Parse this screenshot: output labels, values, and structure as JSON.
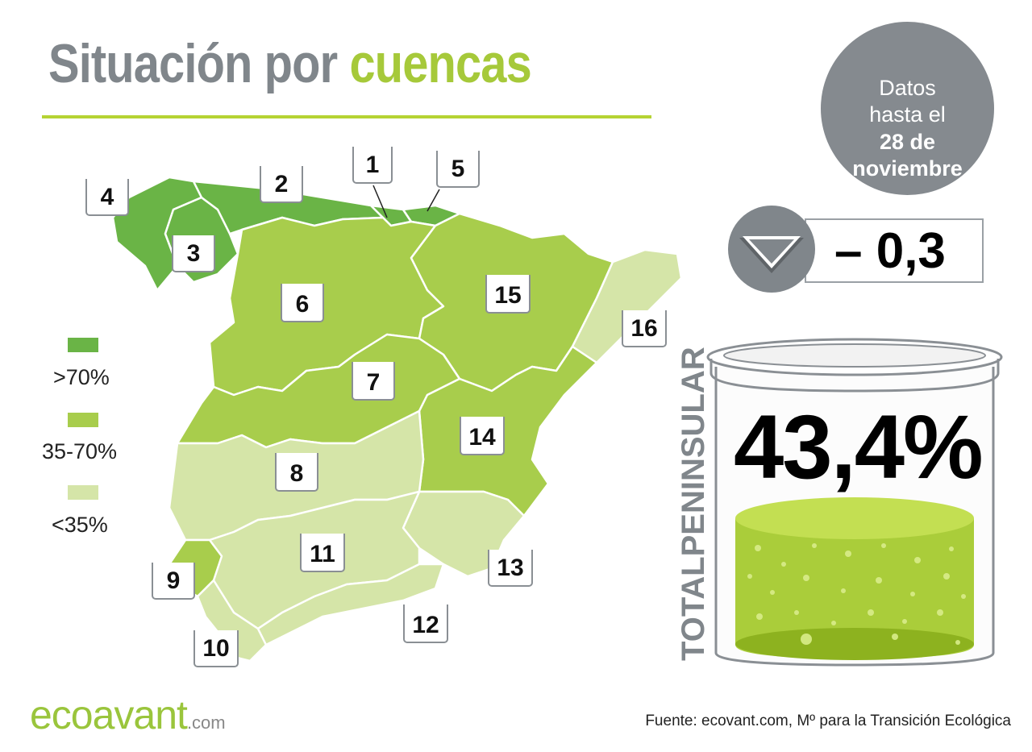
{
  "title": {
    "part1": "Situación por",
    "part2": "cuencas"
  },
  "date": {
    "line1": "Datos",
    "line2": "hasta el",
    "line3": "28 de",
    "line4": "noviembre"
  },
  "change": {
    "value": "– 0,3",
    "direction": "down"
  },
  "total": {
    "label": "TOTALPENINSULAR",
    "value": "43,4%",
    "fill_level": 0.434
  },
  "legend": [
    {
      "label": ">70%",
      "color": "#6ab446"
    },
    {
      "label": "35-70%",
      "color": "#a8cd4c"
    },
    {
      "label": "<35%",
      "color": "#d5e5a8"
    }
  ],
  "basins": [
    {
      "number": "1",
      "category": ">70%"
    },
    {
      "number": "2",
      "category": ">70%"
    },
    {
      "number": "3",
      "category": ">70%"
    },
    {
      "number": "4",
      "category": ">70%"
    },
    {
      "number": "5",
      "category": ">70%"
    },
    {
      "number": "6",
      "category": "35-70%"
    },
    {
      "number": "7",
      "category": "35-70%"
    },
    {
      "number": "8",
      "category": "<35%"
    },
    {
      "number": "9",
      "category": "35-70%"
    },
    {
      "number": "10",
      "category": "<35%"
    },
    {
      "number": "11",
      "category": "<35%"
    },
    {
      "number": "12",
      "category": "<35%"
    },
    {
      "number": "13",
      "category": "<35%"
    },
    {
      "number": "14",
      "category": "35-70%"
    },
    {
      "number": "15",
      "category": "35-70%"
    },
    {
      "number": "16",
      "category": "<35%"
    }
  ],
  "colors": {
    "high": "#6ab446",
    "mid": "#a8cd4c",
    "low": "#d5e5a8",
    "grey": "#80868b",
    "accent": "#b5d334"
  },
  "brand": {
    "name": "ecoavant",
    "suffix": ".com"
  },
  "source": "Fuente: ecovant.com, Mº para la Transición Ecológica"
}
